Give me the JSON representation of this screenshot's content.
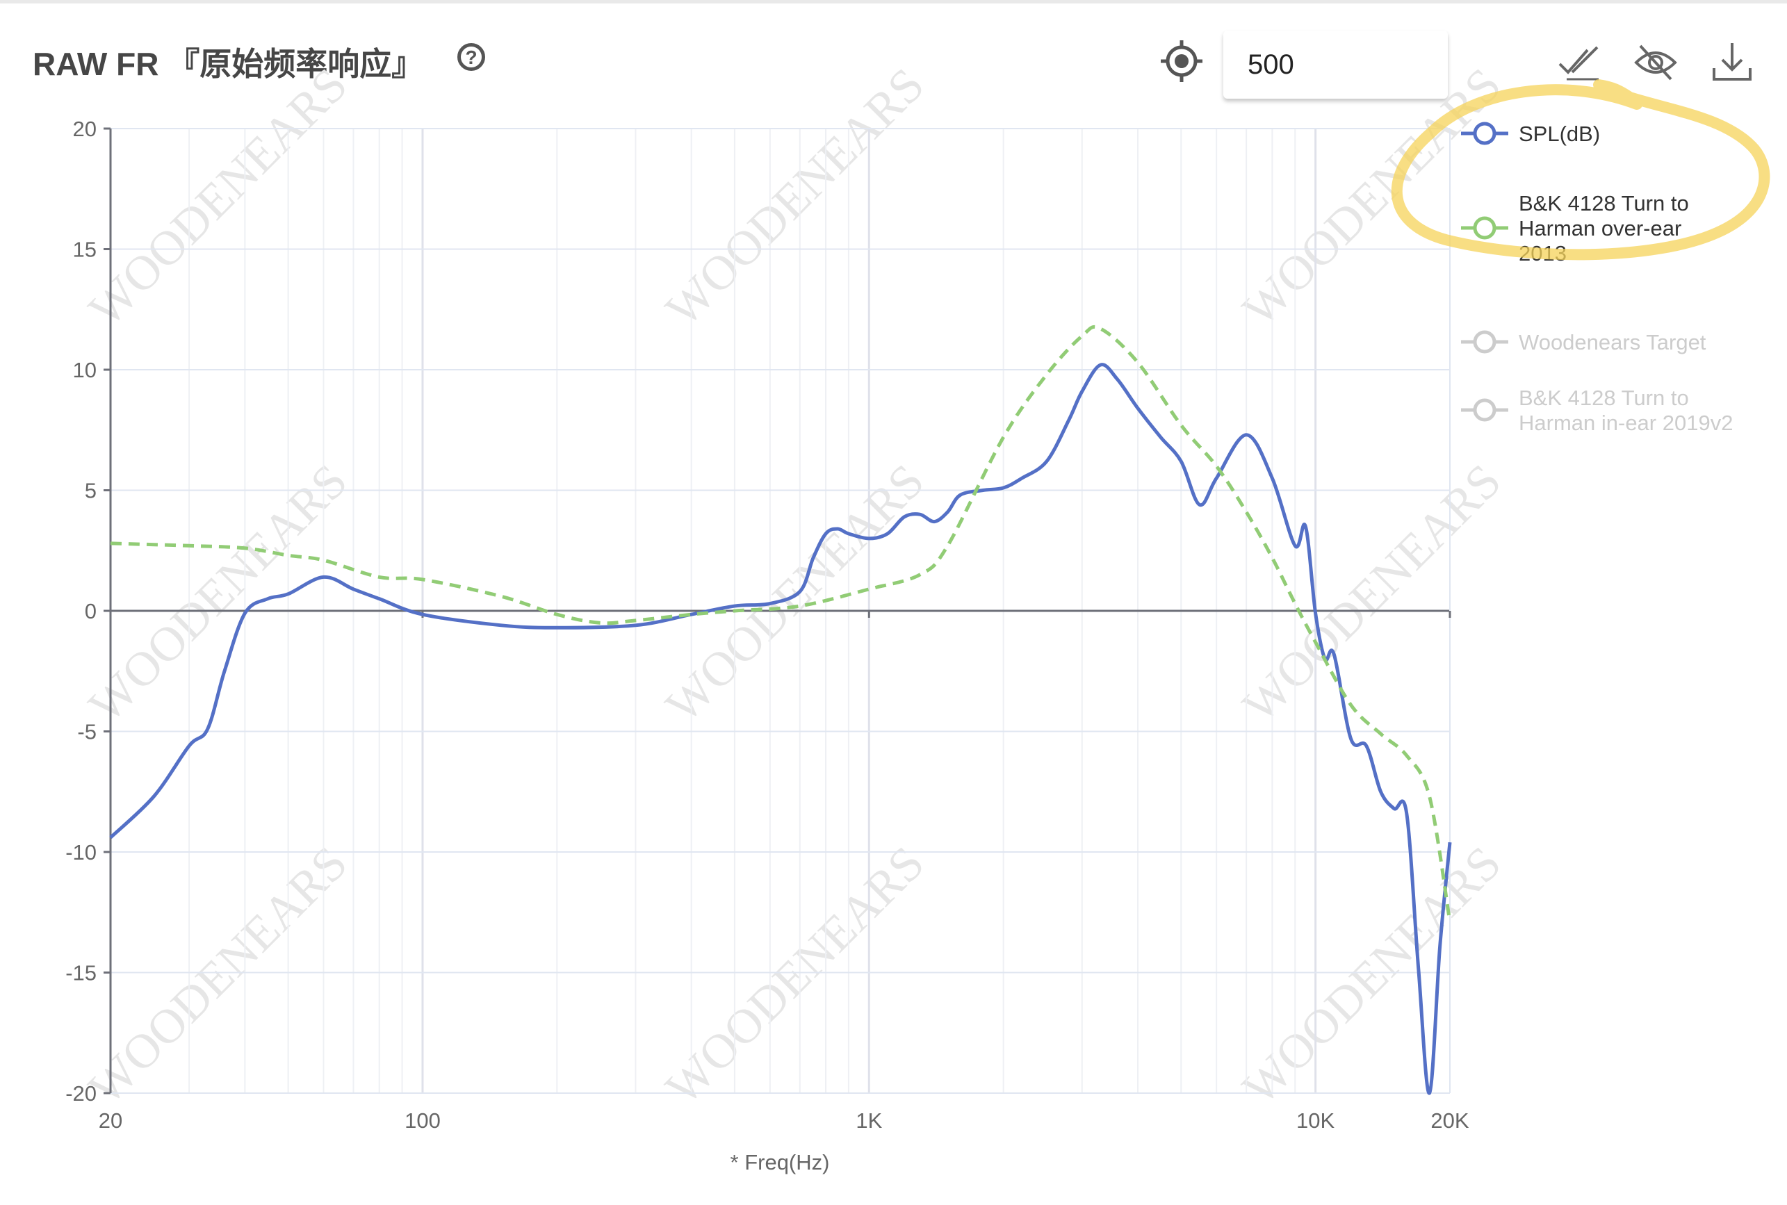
{
  "header": {
    "title": "RAW FR 『原始频率响应』",
    "help_icon": "question-circle-icon",
    "locate_icon": "crosshair-target-icon",
    "frequency_input_value": "500",
    "actions": [
      {
        "name": "select-all-icon",
        "label": "double-check"
      },
      {
        "name": "hide-icon",
        "label": "eye-off"
      },
      {
        "name": "download-icon",
        "label": "download"
      }
    ]
  },
  "watermark": "WOODENEARS",
  "annotation_color": "#f5d35a",
  "chart_data": {
    "type": "line",
    "xlabel": "* Freq(Hz)",
    "ylabel": "",
    "xscale": "log",
    "xlim": [
      20,
      20000
    ],
    "ylim": [
      -20,
      20
    ],
    "xticks": [
      {
        "value": 20,
        "label": "20"
      },
      {
        "value": 100,
        "label": "100"
      },
      {
        "value": 1000,
        "label": "1K"
      },
      {
        "value": 10000,
        "label": "10K"
      },
      {
        "value": 20000,
        "label": "20K"
      }
    ],
    "yticks": [
      20,
      15,
      10,
      5,
      0,
      -5,
      -10,
      -15,
      -20
    ],
    "grid": true,
    "legend_position": "right",
    "series": [
      {
        "name": "SPL(dB)",
        "color": "#5470c6",
        "style": "solid",
        "visible": true,
        "x": [
          20,
          25,
          30,
          33,
          36,
          40,
          45,
          50,
          60,
          70,
          80,
          100,
          150,
          200,
          300,
          400,
          500,
          600,
          700,
          750,
          800,
          850,
          900,
          1000,
          1100,
          1200,
          1300,
          1400,
          1500,
          1600,
          1800,
          2000,
          2200,
          2500,
          2800,
          3000,
          3300,
          3600,
          4000,
          4500,
          5000,
          5500,
          6000,
          7000,
          8000,
          9000,
          9500,
          10000,
          10500,
          11000,
          12000,
          13000,
          14000,
          15000,
          16000,
          17000,
          18000,
          19000,
          20000
        ],
        "y": [
          -9.4,
          -7.7,
          -5.6,
          -4.9,
          -2.5,
          -0.1,
          0.5,
          0.7,
          1.4,
          0.9,
          0.5,
          -0.15,
          -0.6,
          -0.7,
          -0.6,
          -0.15,
          0.2,
          0.3,
          0.8,
          2.2,
          3.2,
          3.4,
          3.2,
          3.0,
          3.2,
          3.9,
          4.0,
          3.7,
          4.1,
          4.8,
          5.0,
          5.1,
          5.5,
          6.2,
          7.9,
          9.1,
          10.2,
          9.6,
          8.4,
          7.2,
          6.2,
          4.4,
          5.5,
          7.3,
          5.5,
          2.7,
          3.5,
          -0.1,
          -2.0,
          -1.8,
          -5.3,
          -5.6,
          -7.5,
          -8.2,
          -8.4,
          -14.8,
          -20,
          -13.9,
          -9.6
        ]
      },
      {
        "name": "B&K 4128 Turn to Harman over-ear 2013",
        "name_lines": [
          "B&K 4128 Turn to",
          "Harman over-ear",
          "2013"
        ],
        "color": "#91cc75",
        "style": "dashed",
        "visible": true,
        "x": [
          20,
          30,
          40,
          50,
          60,
          80,
          100,
          150,
          200,
          250,
          300,
          400,
          500,
          700,
          1000,
          1300,
          1500,
          2000,
          2500,
          3000,
          3300,
          4000,
          5000,
          6000,
          7000,
          8000,
          9000,
          10000,
          12000,
          14000,
          16000,
          18000,
          20000
        ],
        "y": [
          2.8,
          2.7,
          2.6,
          2.3,
          2.1,
          1.4,
          1.3,
          0.6,
          -0.15,
          -0.5,
          -0.4,
          -0.15,
          0,
          0.2,
          0.9,
          1.5,
          2.7,
          7.2,
          9.8,
          11.4,
          11.7,
          10.3,
          7.7,
          6.0,
          4.1,
          2.2,
          0.3,
          -1.3,
          -3.9,
          -5.1,
          -6.0,
          -7.7,
          -12.9
        ]
      },
      {
        "name": "Woodenears Target",
        "name_lines": [
          "Woodenears Target"
        ],
        "color": "#cccccc",
        "visible": false
      },
      {
        "name": "B&K 4128 Turn to Harman in-ear 2019v2",
        "name_lines": [
          "B&K 4128 Turn to",
          "Harman in-ear 2019v2"
        ],
        "color": "#cccccc",
        "visible": false
      }
    ]
  }
}
